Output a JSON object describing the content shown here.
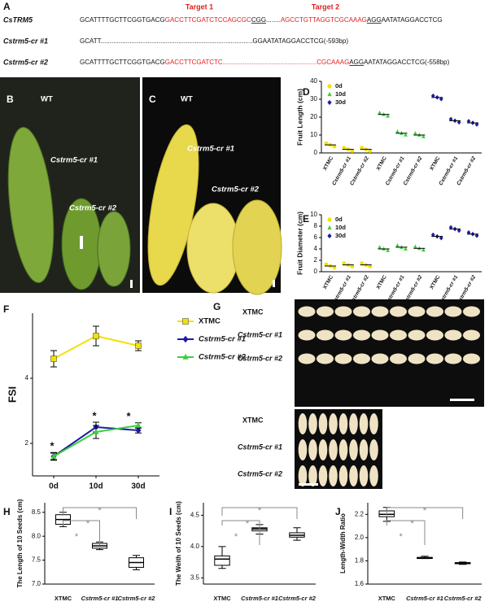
{
  "panel_labels": [
    "A",
    "B",
    "C",
    "D",
    "E",
    "F",
    "G",
    "H",
    "I",
    "J"
  ],
  "sequences": {
    "targets": [
      "Target 1",
      "Target 2"
    ],
    "rows": [
      {
        "name": "CsTRM5",
        "segments": [
          {
            "text": "GCATTTTGCTTCGGTGACG"
          },
          {
            "text": "GACCTTCGATCTCCAGCGC",
            "color": "#e02020"
          },
          {
            "text": "CGG",
            "underline": true
          },
          {
            "text": "........"
          },
          {
            "text": "AGCCTGTTAGGTCGCAAAG",
            "color": "#e02020"
          },
          {
            "text": "AGG",
            "underline": true
          },
          {
            "text": "AATATAGGACCTCG"
          }
        ]
      },
      {
        "name": "Cstrm5-cr #1",
        "segments": [
          {
            "text": "GCATT"
          },
          {
            "text": "...................................................................................."
          },
          {
            "text": "GGAATATAGGACCTCG(-593bp)"
          }
        ]
      },
      {
        "name": "Cstrm5-cr #2",
        "segments": [
          {
            "text": "GCATTTTGCTTCGGTGACG"
          },
          {
            "text": "GACCTTCGATCTC",
            "color": "#e02020"
          },
          {
            "text": "....................................................",
            "color": "#e02020"
          },
          {
            "text": "CGCAAAG",
            "color": "#e02020"
          },
          {
            "text": "AGG",
            "underline": true
          },
          {
            "text": "AATATAGGACCTCG(-558bp)"
          }
        ]
      }
    ]
  },
  "photos": {
    "B": [
      "WT",
      "Cstrm5-cr #1",
      "Cstrm5-cr #2"
    ],
    "C": [
      "WT",
      "Cstrm5-cr #1",
      "Cstrm5-cr #2"
    ],
    "G": [
      "XTMC",
      "Cstrm5-cr #1",
      "Cstrm5-cr #2",
      "XTMC",
      "Cstrm5-cr #1",
      "Cstrm5-cr #2"
    ]
  },
  "chart_data": [
    {
      "type": "dot",
      "y_label": "Fruit Length (cm)",
      "legend": "upper left",
      "categories": [
        "XTMC",
        "Cstrm5-cr #1",
        "Cstrm5-cr #2",
        "XTMC",
        "Cstrm5-cr #1",
        "Cstrm5-cr #2",
        "XTMC",
        "Cstrm5-cr #1",
        "Cstrm5-cr #2"
      ],
      "series": [
        {
          "name": "0d",
          "color": "#f2e200",
          "marker": "circle",
          "values": [
            4.5,
            2,
            2,
            null,
            null,
            null,
            null,
            null,
            null
          ]
        },
        {
          "name": "10d",
          "color": "#3ccf3c",
          "marker": "triangle",
          "values": [
            null,
            null,
            null,
            21.5,
            11,
            10,
            null,
            null,
            null
          ]
        },
        {
          "name": "30d",
          "color": "#1c1ca8",
          "marker": "diamond",
          "values": [
            null,
            null,
            null,
            null,
            null,
            null,
            31,
            18,
            16.8
          ]
        }
      ],
      "ylim": [
        0,
        40
      ],
      "yticks": [
        0,
        10,
        20,
        30,
        40
      ]
    },
    {
      "type": "dot",
      "y_label": "Fruit Diameter (cm)",
      "legend": "upper left",
      "categories": [
        "XTMC",
        "Cstrm5-cr #1",
        "Cstrm5-cr #2",
        "XTMC",
        "Cstrm5-cr #1",
        "Cstrm5-cr #2",
        "XTMC",
        "Cstrm5-cr #1",
        "Cstrm5-cr #2"
      ],
      "series": [
        {
          "name": "0d",
          "color": "#f2e200",
          "marker": "circle",
          "values": [
            1,
            1.2,
            1.2,
            null,
            null,
            null,
            null,
            null,
            null
          ]
        },
        {
          "name": "10d",
          "color": "#3ccf3c",
          "marker": "triangle",
          "values": [
            null,
            null,
            null,
            4,
            4.3,
            4.1,
            null,
            null,
            null
          ]
        },
        {
          "name": "30d",
          "color": "#1c1ca8",
          "marker": "diamond",
          "values": [
            null,
            null,
            null,
            null,
            null,
            null,
            6.2,
            7.5,
            6.6
          ]
        }
      ],
      "ylim": [
        0,
        10
      ],
      "yticks": [
        0,
        2,
        4,
        6,
        8,
        10
      ]
    },
    {
      "type": "line",
      "y_label": "FSI",
      "legend": "right",
      "categories": [
        "0d",
        "10d",
        "30d"
      ],
      "series": [
        {
          "name": "XTMC",
          "color": "#f2e200",
          "marker": "square",
          "values": [
            4.6,
            5.3,
            5
          ],
          "errors": [
            0.25,
            0.3,
            0.15
          ]
        },
        {
          "name": "Cstrm5-cr #1",
          "color": "#1c1ca8",
          "marker": "diamond",
          "values": [
            1.6,
            2.5,
            2.4
          ],
          "errors": [
            0.12,
            0.15,
            0.08
          ]
        },
        {
          "name": "Cstrm5-cr #2",
          "color": "#3ccf3c",
          "marker": "triangle",
          "values": [
            1.6,
            2.35,
            2.55
          ],
          "errors": [
            0.1,
            0.2,
            0.08
          ]
        }
      ],
      "annotations": [
        "*",
        "*",
        "*"
      ],
      "ylim": [
        1,
        6
      ],
      "yticks": [
        2,
        4
      ]
    },
    {
      "type": "box",
      "y_label": "The Length of 10 Seeds (cm)",
      "categories": [
        "XTMC",
        "Cstrm5-cr #1",
        "Cstrm5-cr #2"
      ],
      "boxes": [
        {
          "min": 8.2,
          "q1": 8.25,
          "median": 8.35,
          "q3": 8.45,
          "max": 8.5
        },
        {
          "min": 7.72,
          "q1": 7.75,
          "median": 7.8,
          "q3": 7.85,
          "max": 7.88
        },
        {
          "min": 7.3,
          "q1": 7.35,
          "median": 7.45,
          "q3": 7.55,
          "max": 7.6
        }
      ],
      "annotations": [
        "*",
        "*",
        "*"
      ],
      "ylim": [
        7,
        8.7
      ],
      "yticks": [
        {
          "value": 7,
          "label": "7.0"
        },
        7.5,
        {
          "value": 8,
          "label": "8.0"
        },
        8.5
      ]
    },
    {
      "type": "box",
      "y_label": "The Weith of 10 Seeds (cm)",
      "categories": [
        "XTMC",
        "Cstrm5-cr #1",
        "Cstrm5-cr #2"
      ],
      "boxes": [
        {
          "min": 3.65,
          "q1": 3.7,
          "median": 3.8,
          "q3": 3.85,
          "max": 4
        },
        {
          "min": 4.2,
          "q1": 4.25,
          "median": 4.28,
          "q3": 4.3,
          "max": 4.35
        },
        {
          "min": 4.1,
          "q1": 4.15,
          "median": 4.18,
          "q3": 4.22,
          "max": 4.3
        }
      ],
      "annotations": [
        "*",
        "*",
        "*"
      ],
      "ylim": [
        3.4,
        4.7
      ],
      "yticks": [
        3.5,
        {
          "value": 4,
          "label": "4.0"
        },
        4.5
      ]
    },
    {
      "type": "box",
      "y_label": "Length-Width Ratio",
      "categories": [
        "XTMC",
        "Cstrm5-cr #1",
        "Cstrm5-cr #2"
      ],
      "boxes": [
        {
          "min": 2.14,
          "q1": 2.18,
          "median": 2.2,
          "q3": 2.23,
          "max": 2.26
        },
        {
          "min": 1.82,
          "q1": 1.82,
          "median": 1.825,
          "q3": 1.83,
          "max": 1.84
        },
        {
          "min": 1.77,
          "q1": 1.775,
          "median": 1.78,
          "q3": 1.785,
          "max": 1.79
        }
      ],
      "annotations": [
        "*",
        "*",
        "*"
      ],
      "ylim": [
        1.6,
        2.3
      ],
      "yticks": [
        1.6,
        1.8,
        {
          "value": 2,
          "label": "2.0"
        },
        2.2
      ]
    }
  ]
}
